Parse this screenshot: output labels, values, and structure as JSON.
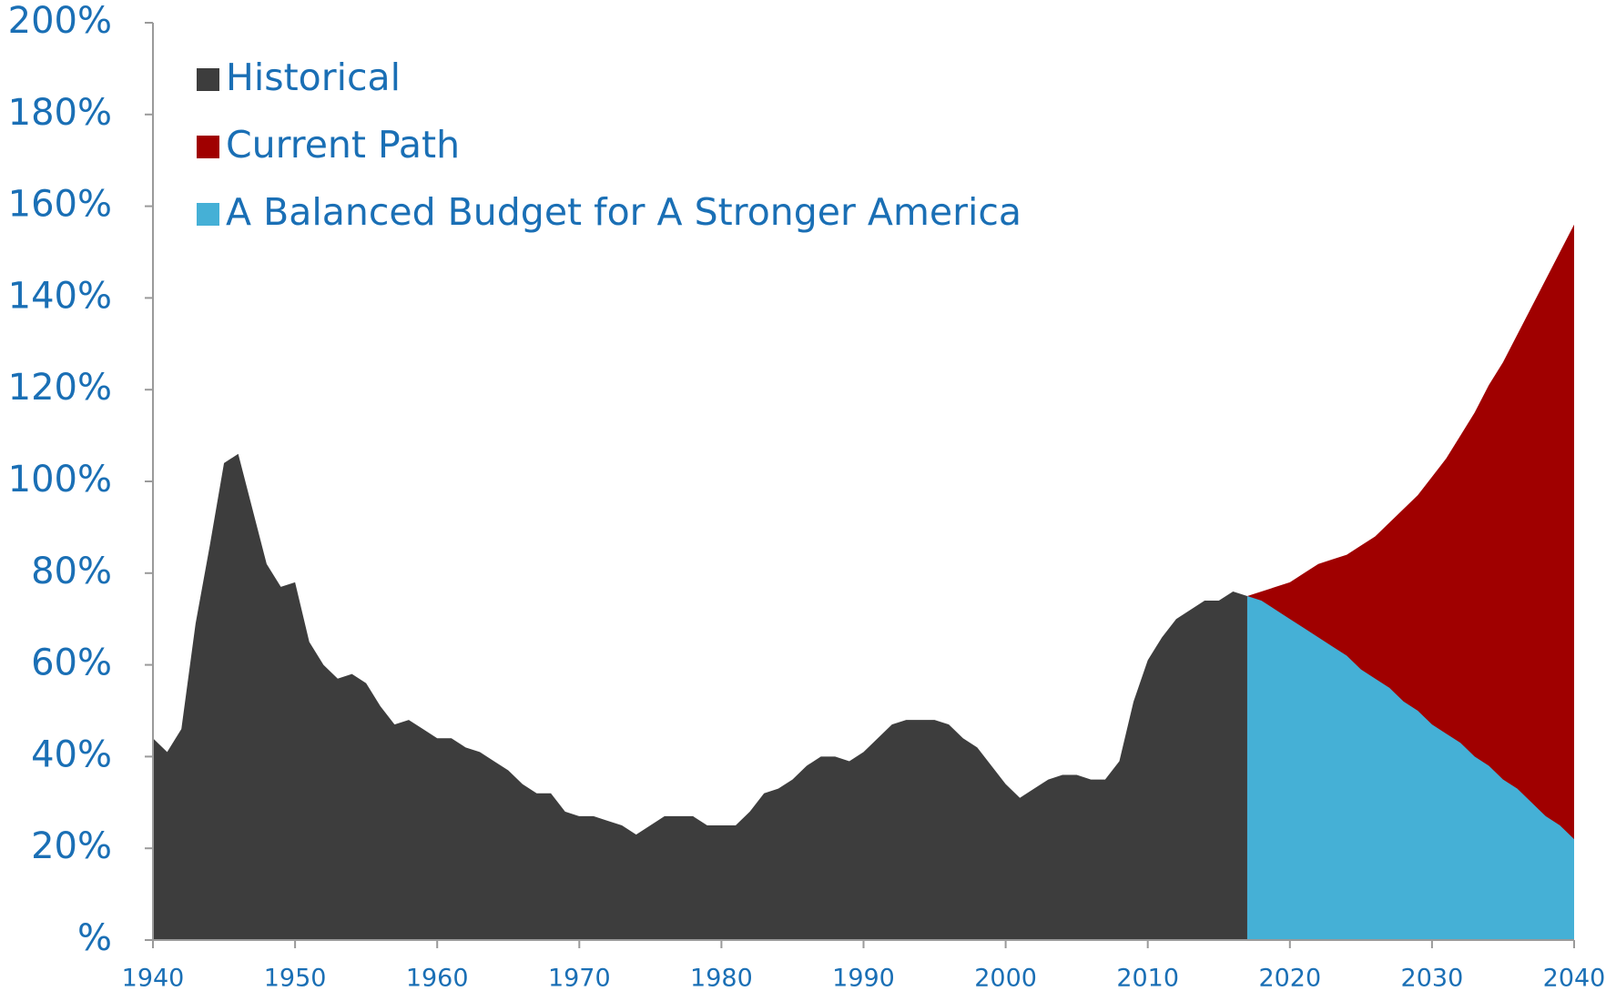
{
  "chart_data": {
    "type": "area",
    "x": [
      1940,
      1941,
      1942,
      1943,
      1944,
      1945,
      1946,
      1947,
      1948,
      1949,
      1950,
      1951,
      1952,
      1953,
      1954,
      1955,
      1956,
      1957,
      1958,
      1959,
      1960,
      1961,
      1962,
      1963,
      1964,
      1965,
      1966,
      1967,
      1968,
      1969,
      1970,
      1971,
      1972,
      1973,
      1974,
      1975,
      1976,
      1977,
      1978,
      1979,
      1980,
      1981,
      1982,
      1983,
      1984,
      1985,
      1986,
      1987,
      1988,
      1989,
      1990,
      1991,
      1992,
      1993,
      1994,
      1995,
      1996,
      1997,
      1998,
      1999,
      2000,
      2001,
      2002,
      2003,
      2004,
      2005,
      2006,
      2007,
      2008,
      2009,
      2010,
      2011,
      2012,
      2013,
      2014,
      2015,
      2016,
      2017,
      2018,
      2019,
      2020,
      2021,
      2022,
      2023,
      2024,
      2025,
      2026,
      2027,
      2028,
      2029,
      2030,
      2031,
      2032,
      2033,
      2034,
      2035,
      2036,
      2037,
      2038,
      2039,
      2040
    ],
    "series": [
      {
        "name": "Historical",
        "color": "#3d3d3d",
        "values": [
          44,
          41,
          46,
          69,
          86,
          104,
          106,
          94,
          82,
          77,
          78,
          65,
          60,
          57,
          58,
          56,
          51,
          47,
          48,
          46,
          44,
          44,
          42,
          41,
          39,
          37,
          34,
          32,
          32,
          28,
          27,
          27,
          26,
          25,
          23,
          25,
          27,
          27,
          27,
          25,
          25,
          25,
          28,
          32,
          33,
          35,
          38,
          40,
          40,
          39,
          41,
          44,
          47,
          48,
          48,
          48,
          47,
          44,
          42,
          38,
          34,
          31,
          33,
          35,
          36,
          36,
          35,
          35,
          39,
          52,
          61,
          66,
          70,
          72,
          74,
          74,
          76,
          75,
          null,
          null,
          null,
          null,
          null,
          null,
          null,
          null,
          null,
          null,
          null,
          null,
          null,
          null,
          null,
          null,
          null,
          null,
          null,
          null,
          null,
          null,
          null
        ]
      },
      {
        "name": "Current Path",
        "color": "#a00000",
        "values": [
          null,
          null,
          null,
          null,
          null,
          null,
          null,
          null,
          null,
          null,
          null,
          null,
          null,
          null,
          null,
          null,
          null,
          null,
          null,
          null,
          null,
          null,
          null,
          null,
          null,
          null,
          null,
          null,
          null,
          null,
          null,
          null,
          null,
          null,
          null,
          null,
          null,
          null,
          null,
          null,
          null,
          null,
          null,
          null,
          null,
          null,
          null,
          null,
          null,
          null,
          null,
          null,
          null,
          null,
          null,
          null,
          null,
          null,
          null,
          null,
          null,
          null,
          null,
          null,
          null,
          null,
          null,
          null,
          null,
          null,
          null,
          null,
          null,
          null,
          null,
          null,
          null,
          75,
          76,
          77,
          78,
          80,
          82,
          83,
          84,
          86,
          88,
          91,
          94,
          97,
          101,
          105,
          110,
          115,
          121,
          126,
          132,
          138,
          144,
          150,
          156
        ]
      },
      {
        "name": "A Balanced Budget for A Stronger America",
        "color": "#45b0d6",
        "values": [
          null,
          null,
          null,
          null,
          null,
          null,
          null,
          null,
          null,
          null,
          null,
          null,
          null,
          null,
          null,
          null,
          null,
          null,
          null,
          null,
          null,
          null,
          null,
          null,
          null,
          null,
          null,
          null,
          null,
          null,
          null,
          null,
          null,
          null,
          null,
          null,
          null,
          null,
          null,
          null,
          null,
          null,
          null,
          null,
          null,
          null,
          null,
          null,
          null,
          null,
          null,
          null,
          null,
          null,
          null,
          null,
          null,
          null,
          null,
          null,
          null,
          null,
          null,
          null,
          null,
          null,
          null,
          null,
          null,
          null,
          null,
          null,
          null,
          null,
          null,
          null,
          null,
          75,
          74,
          72,
          70,
          68,
          66,
          64,
          62,
          59,
          57,
          55,
          52,
          50,
          47,
          45,
          43,
          40,
          38,
          35,
          33,
          30,
          27,
          25,
          22
        ]
      }
    ],
    "xlim": [
      1940,
      2040
    ],
    "xticks": [
      1940,
      1950,
      1960,
      1970,
      1980,
      1990,
      2000,
      2010,
      2020,
      2030,
      2040
    ],
    "ylim": [
      0,
      200
    ],
    "yticks": [
      {
        "value": 0,
        "label": "%"
      },
      {
        "value": 20,
        "label": "20%"
      },
      {
        "value": 40,
        "label": "40%"
      },
      {
        "value": 60,
        "label": "60%"
      },
      {
        "value": 80,
        "label": "80%"
      },
      {
        "value": 100,
        "label": "100%"
      },
      {
        "value": 120,
        "label": "120%"
      },
      {
        "value": 140,
        "label": "140%"
      },
      {
        "value": 160,
        "label": "160%"
      },
      {
        "value": 180,
        "label": "180%"
      },
      {
        "value": 200,
        "label": "200%"
      }
    ],
    "legend": "upper left"
  }
}
